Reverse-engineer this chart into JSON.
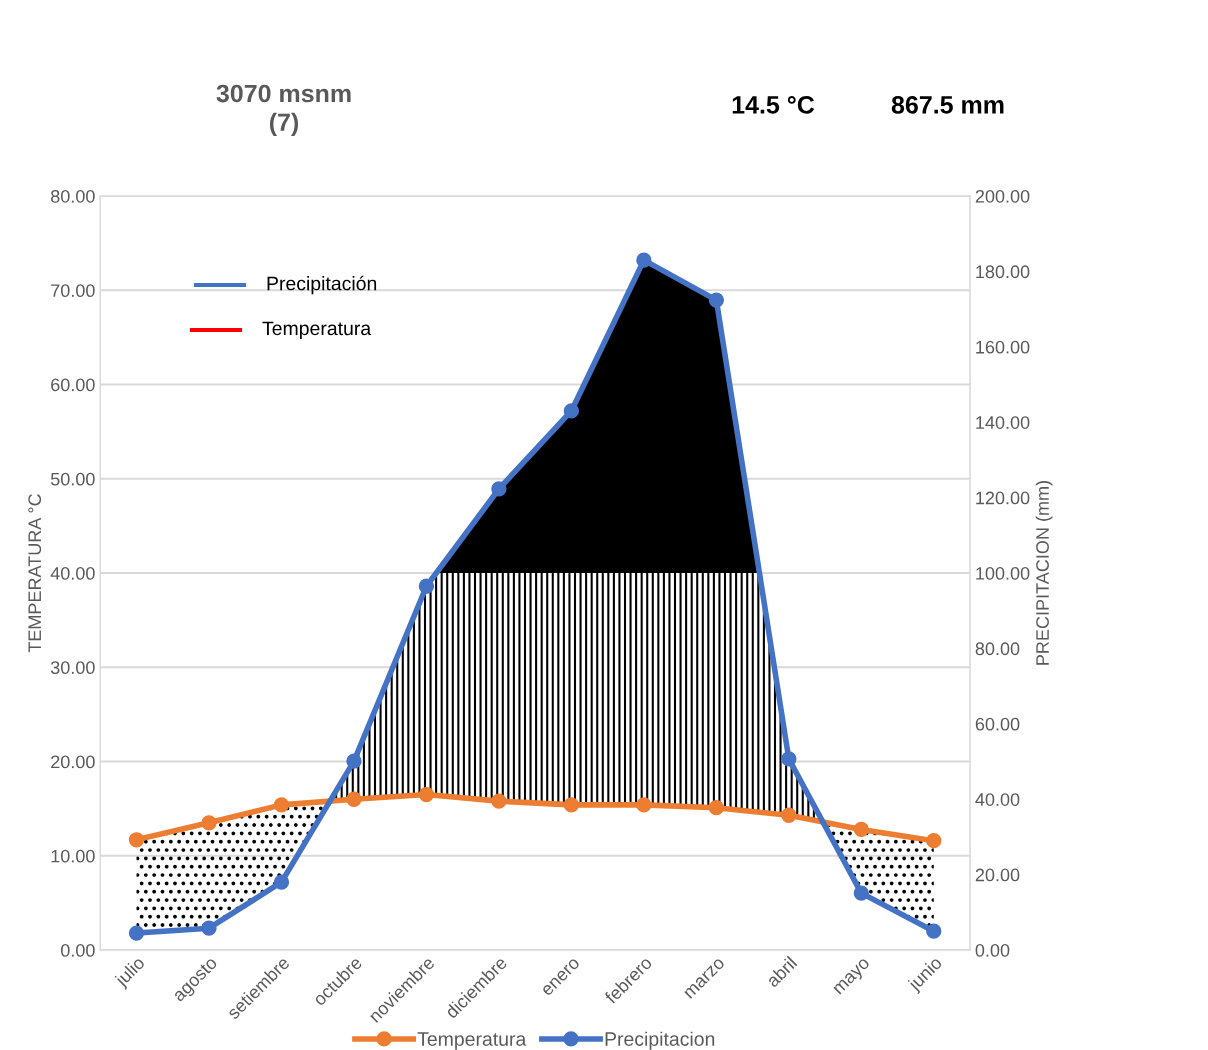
{
  "chart_data": {
    "type": "line",
    "title": "3070 msnm\n(7)",
    "annotations": [
      "14.5 °C",
      "867.5 mm",
      "Precipitación",
      "Temperatura"
    ],
    "categories": [
      "julio",
      "agosto",
      "setiembre",
      "octubre",
      "noviembre",
      "diciembre",
      "enero",
      "febrero",
      "marzo",
      "abril",
      "mayo",
      "junio"
    ],
    "series": [
      {
        "name": "Temperatura",
        "color": "#ed7d31",
        "values": [
          11.7,
          13.5,
          15.4,
          16.0,
          16.5,
          15.8,
          15.4,
          15.4,
          15.1,
          14.3,
          12.8,
          11.6
        ]
      },
      {
        "name": "Precipitacion",
        "color": "#4472c4",
        "axis": "y2",
        "values": [
          4.5,
          5.8,
          18.0,
          50.1,
          96.5,
          122.3,
          143.0,
          183.0,
          172.4,
          50.7,
          15.1,
          5.0
        ]
      }
    ],
    "ylabel": "TEMPERATURA °C",
    "y2label": "PRECIPITACION (mm)",
    "ylim": [
      0,
      80
    ],
    "yticks": [
      {
        "value": 0,
        "label": "0.00"
      },
      {
        "value": 10,
        "label": "10.00"
      },
      {
        "value": 20,
        "label": "20.00"
      },
      {
        "value": 30,
        "label": "30.00"
      },
      {
        "value": 40,
        "label": "40.00"
      },
      {
        "value": 50,
        "label": "50.00"
      },
      {
        "value": 60,
        "label": "60.00"
      },
      {
        "value": 70,
        "label": "70.00"
      },
      {
        "value": 80,
        "label": "80.00"
      }
    ],
    "y2lim": [
      0,
      200
    ],
    "y2ticks": [
      {
        "value": 0,
        "label": "0.00"
      },
      {
        "value": 20,
        "label": "20.00"
      },
      {
        "value": 40,
        "label": "40.00"
      },
      {
        "value": 60,
        "label": "60.00"
      },
      {
        "value": 80,
        "label": "80.00"
      },
      {
        "value": 100,
        "label": "100.00"
      },
      {
        "value": 120,
        "label": "120.00"
      },
      {
        "value": 140,
        "label": "140.00"
      },
      {
        "value": 160,
        "label": "160.00"
      },
      {
        "value": 180,
        "label": "180.00"
      },
      {
        "value": 200,
        "label": "200.00"
      }
    ],
    "grid": "y",
    "legend": "bottom",
    "marker": "circle",
    "line_style": "solid"
  }
}
